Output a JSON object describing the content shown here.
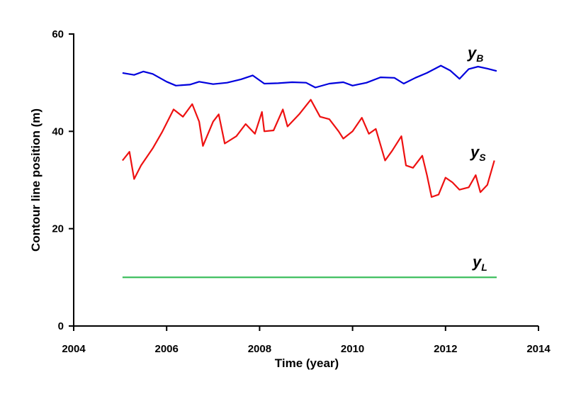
{
  "chart_data": {
    "type": "line",
    "title": "",
    "xlabel": "Time (year)",
    "ylabel": "Contour line position (m)",
    "xlim": [
      2004,
      2014
    ],
    "ylim": [
      0,
      60
    ],
    "x_ticks": [
      2004,
      2006,
      2008,
      2010,
      2012,
      2014
    ],
    "y_ticks": [
      0,
      20,
      40,
      60
    ],
    "grid": false,
    "legend": "none",
    "series": [
      {
        "name": "yB",
        "label_main": "y",
        "label_sub": "B",
        "color": "#0000dd",
        "x": [
          2005.05,
          2005.3,
          2005.5,
          2005.7,
          2006.0,
          2006.2,
          2006.5,
          2006.7,
          2007.0,
          2007.3,
          2007.6,
          2007.85,
          2008.1,
          2008.4,
          2008.7,
          2009.0,
          2009.2,
          2009.5,
          2009.8,
          2010.0,
          2010.3,
          2010.6,
          2010.9,
          2011.1,
          2011.35,
          2011.6,
          2011.9,
          2012.1,
          2012.3,
          2012.5,
          2012.7,
          2012.9,
          2013.1
        ],
        "values": [
          52.0,
          51.6,
          52.3,
          51.8,
          50.2,
          49.4,
          49.6,
          50.2,
          49.7,
          50.0,
          50.7,
          51.5,
          49.8,
          49.9,
          50.1,
          50.0,
          49.0,
          49.8,
          50.1,
          49.4,
          50.0,
          51.1,
          51.0,
          49.8,
          51.0,
          52.0,
          53.5,
          52.5,
          50.8,
          52.8,
          53.3,
          52.9,
          52.4
        ]
      },
      {
        "name": "yS",
        "label_main": "y",
        "label_sub": "S",
        "color": "#ee1111",
        "x": [
          2005.05,
          2005.2,
          2005.3,
          2005.45,
          2005.7,
          2005.9,
          2006.15,
          2006.35,
          2006.55,
          2006.7,
          2006.78,
          2007.0,
          2007.12,
          2007.25,
          2007.5,
          2007.7,
          2007.9,
          2008.05,
          2008.1,
          2008.3,
          2008.5,
          2008.6,
          2008.85,
          2009.1,
          2009.3,
          2009.5,
          2009.7,
          2009.8,
          2010.0,
          2010.2,
          2010.35,
          2010.5,
          2010.7,
          2010.85,
          2011.05,
          2011.15,
          2011.3,
          2011.5,
          2011.6,
          2011.7,
          2011.85,
          2012.0,
          2012.15,
          2012.3,
          2012.5,
          2012.65,
          2012.75,
          2012.9,
          2013.05
        ],
        "values": [
          34.0,
          35.8,
          30.2,
          33.0,
          36.5,
          39.8,
          44.5,
          43.0,
          45.6,
          42.0,
          37.0,
          42.0,
          43.5,
          37.5,
          39.0,
          41.5,
          39.5,
          44.0,
          40.0,
          40.2,
          44.5,
          41.0,
          43.5,
          46.5,
          43.0,
          42.5,
          40.0,
          38.5,
          40.0,
          42.8,
          39.5,
          40.5,
          34.0,
          36.0,
          39.0,
          33.0,
          32.5,
          35.0,
          31.0,
          26.5,
          27.0,
          30.5,
          29.5,
          28.0,
          28.5,
          31.0,
          27.5,
          29.0,
          34.0
        ]
      },
      {
        "name": "yL",
        "label_main": "y",
        "label_sub": "L",
        "color": "#33bb55",
        "x": [
          2005.05,
          2013.1
        ],
        "values": [
          10.0,
          10.0
        ]
      }
    ]
  }
}
